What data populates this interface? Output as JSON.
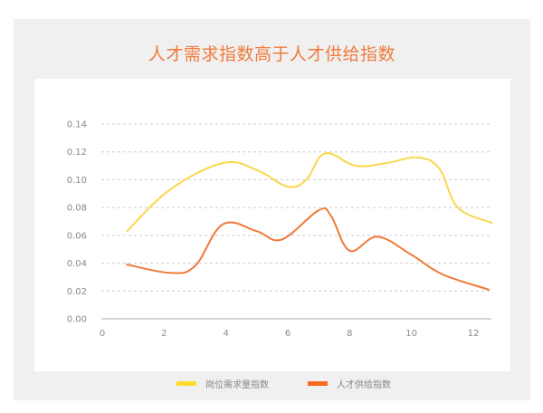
{
  "title": "人才需求指数高于人才供给指数",
  "colors": {
    "title": "#f07a3a",
    "demand": "#fad74a",
    "supply": "#f07a3a",
    "legend_demand": "#fddc2c",
    "legend_supply": "#fb6a22",
    "grid": "#cccccc",
    "axis": "#c8c8c8",
    "panel": "#f0f0f0",
    "card": "#ffffff"
  },
  "legend": [
    {
      "label": "岗位需求量指数",
      "color": "#fddc2c"
    },
    {
      "label": "人才供给指数",
      "color": "#fb6a22"
    }
  ],
  "chart_data": {
    "type": "line",
    "title": "人才需求指数高于人才供给指数",
    "xlabel": "",
    "ylabel": "",
    "xlim": [
      0,
      12.6
    ],
    "ylim": [
      0,
      0.14
    ],
    "x_ticks": [
      "0",
      "2",
      "4",
      "6",
      "8",
      "10",
      "12"
    ],
    "y_ticks": [
      "0.00",
      "0.02",
      "0.04",
      "0.06",
      "0.08",
      "0.10",
      "0.12",
      "0.14"
    ],
    "grid": "horizontal dashed",
    "legend_position": "bottom",
    "smooth": true,
    "series": [
      {
        "name": "岗位需求量指数",
        "x": [
          0.8,
          2.2,
          3.9,
          5.0,
          6.0,
          6.6,
          7.2,
          8.2,
          9.2,
          10.2,
          10.9,
          11.5,
          12.6
        ],
        "values": [
          0.063,
          0.093,
          0.112,
          0.107,
          0.095,
          0.1,
          0.119,
          0.11,
          0.112,
          0.116,
          0.108,
          0.08,
          0.069
        ]
      },
      {
        "name": "人才供给指数",
        "x": [
          0.8,
          2.2,
          3.0,
          3.9,
          5.0,
          5.8,
          7.0,
          7.4,
          8.0,
          8.9,
          10.0,
          11.0,
          12.5
        ],
        "values": [
          0.039,
          0.033,
          0.038,
          0.068,
          0.063,
          0.057,
          0.078,
          0.074,
          0.049,
          0.059,
          0.046,
          0.032,
          0.021
        ]
      }
    ]
  }
}
